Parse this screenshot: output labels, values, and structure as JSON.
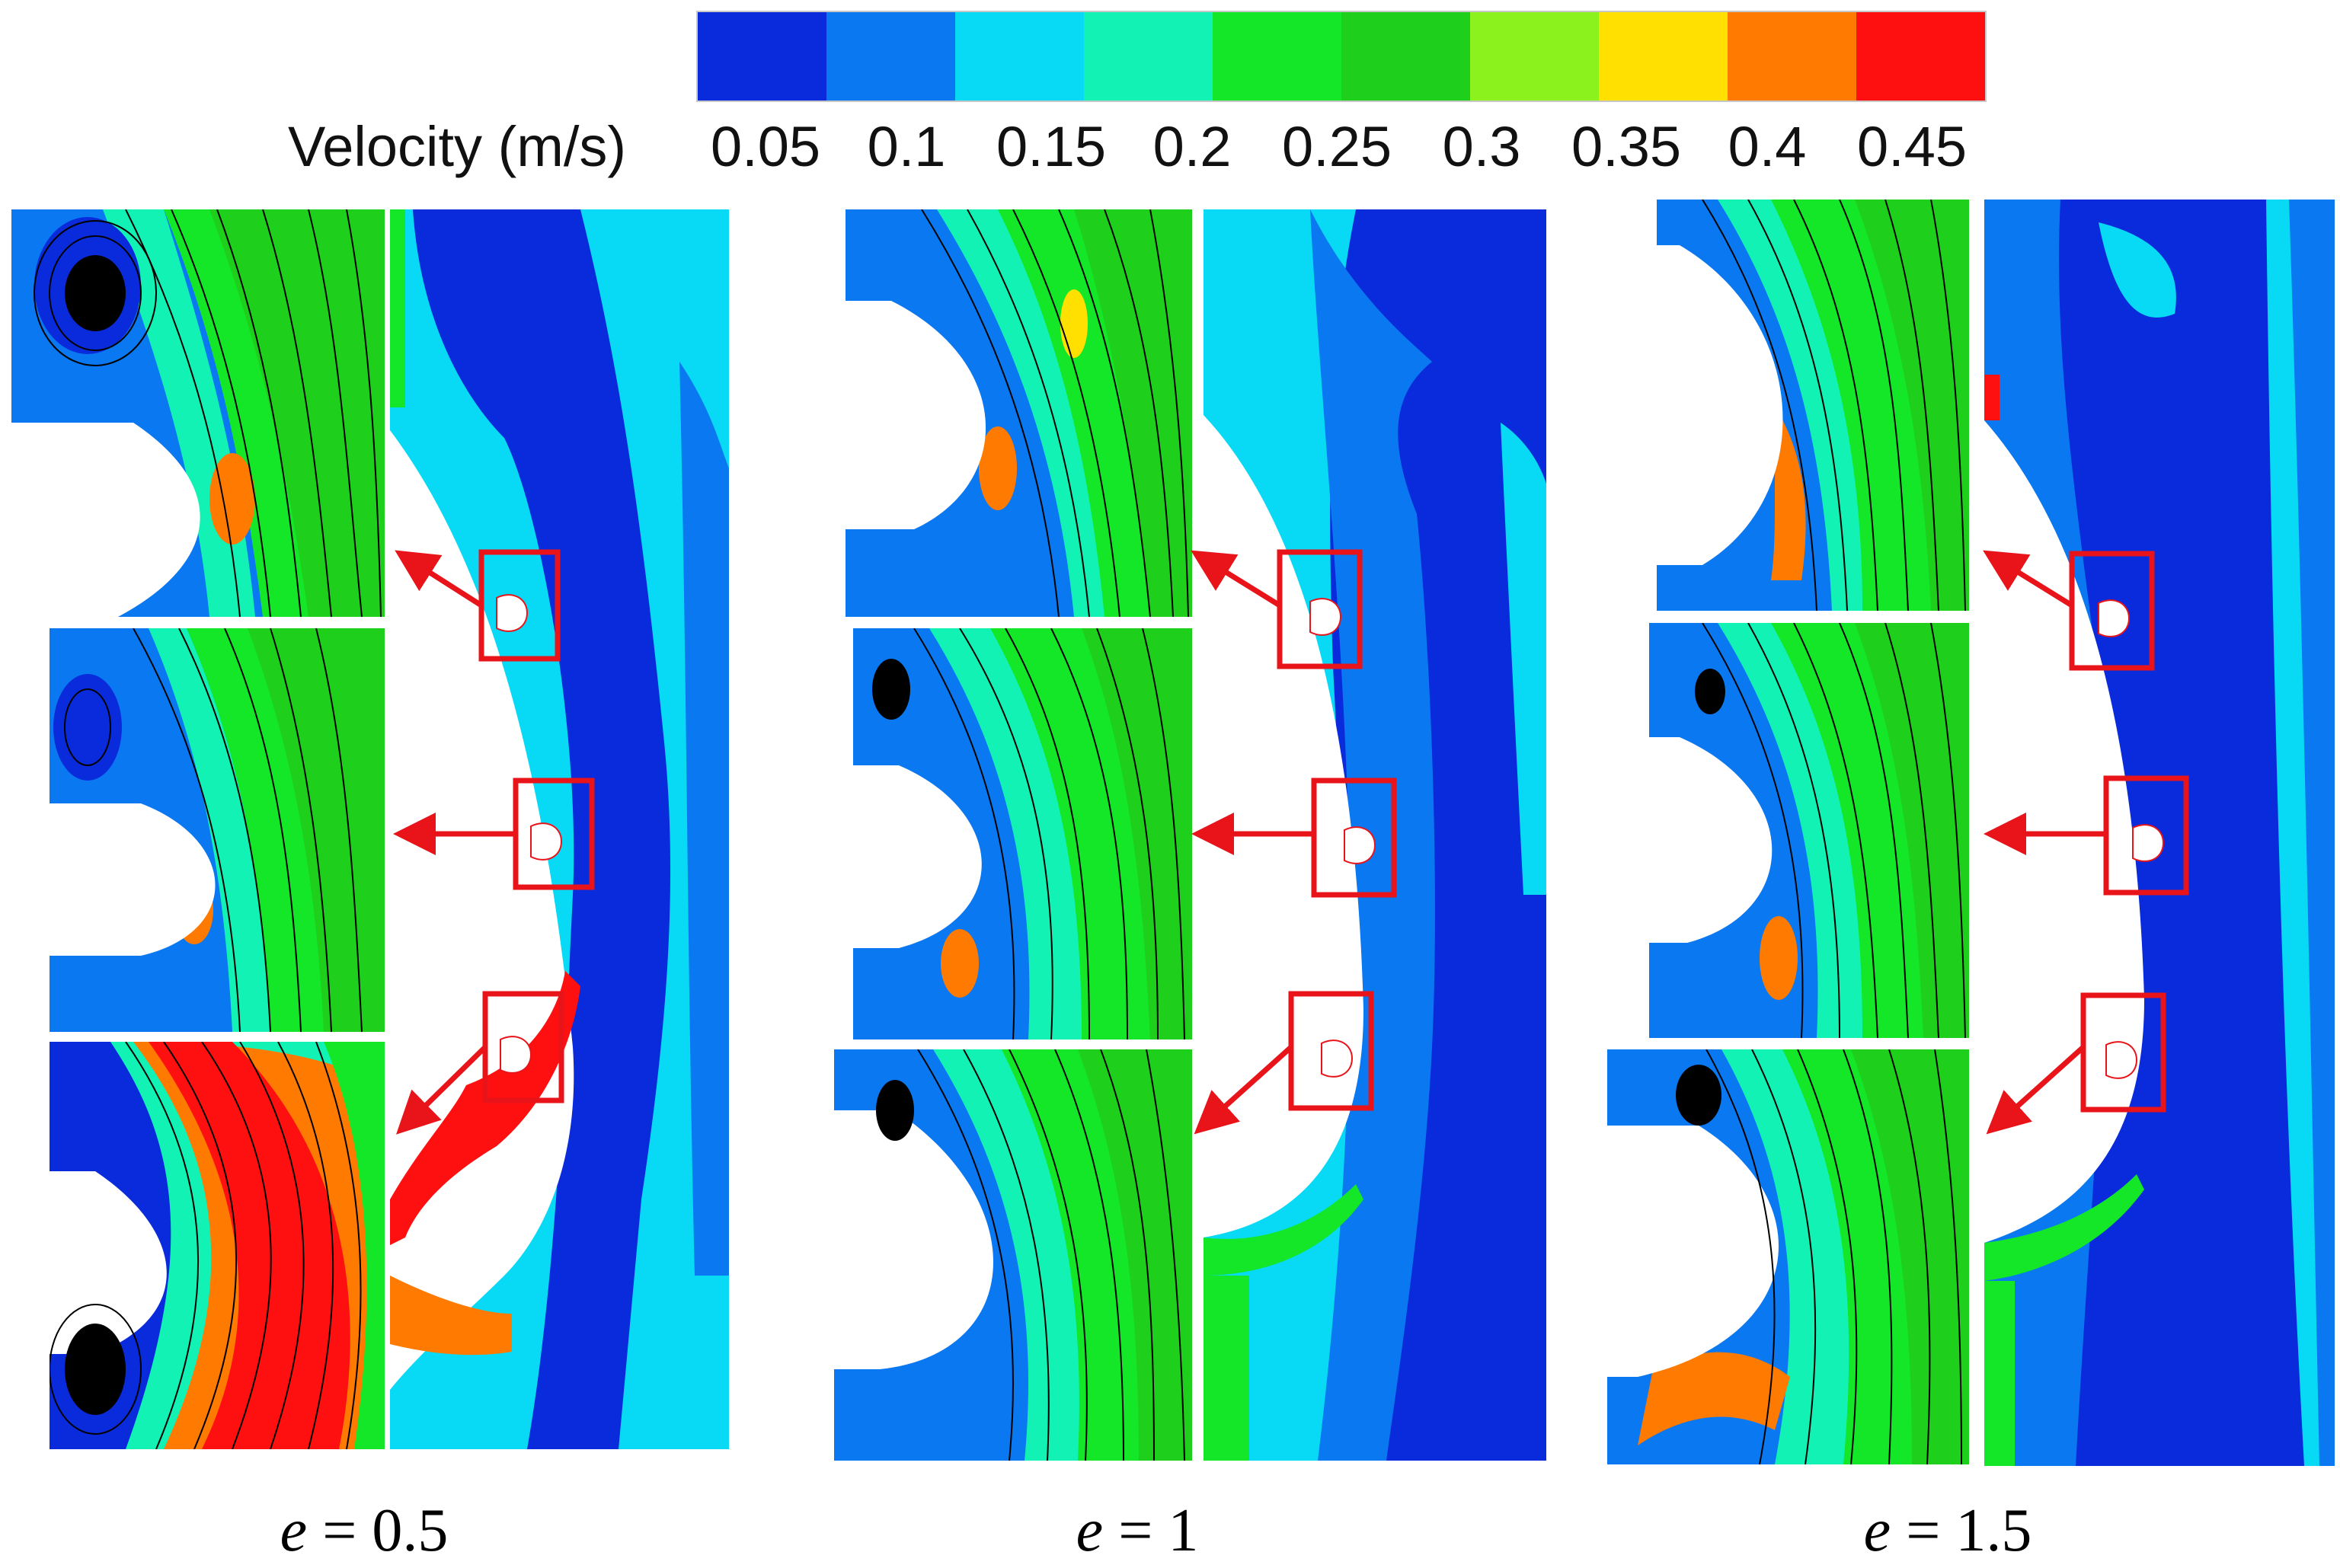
{
  "colorbar": {
    "title": "Velocity (m/s)",
    "ticks": [
      "0.05",
      "0.1",
      "0.15",
      "0.2",
      "0.25",
      "0.3",
      "0.35",
      "0.4",
      "0.45"
    ],
    "colors": [
      "#0a2bdc",
      "#0a78f0",
      "#08d9f5",
      "#12f2b4",
      "#14e628",
      "#1ed01c",
      "#8cf21e",
      "#ffe000",
      "#ff7a00",
      "#ff1010"
    ]
  },
  "cases": [
    {
      "e_symbol": "e",
      "equals": "= 0.5",
      "label_value": "0.5"
    },
    {
      "e_symbol": "e",
      "equals": "= 1",
      "label_value": "1"
    },
    {
      "e_symbol": "e",
      "equals": "= 1.5",
      "label_value": "1.5"
    }
  ],
  "colors": {
    "zoom_box": "#e8141a",
    "arrow": "#e8141a",
    "background_flow": "#0a2bdc"
  }
}
